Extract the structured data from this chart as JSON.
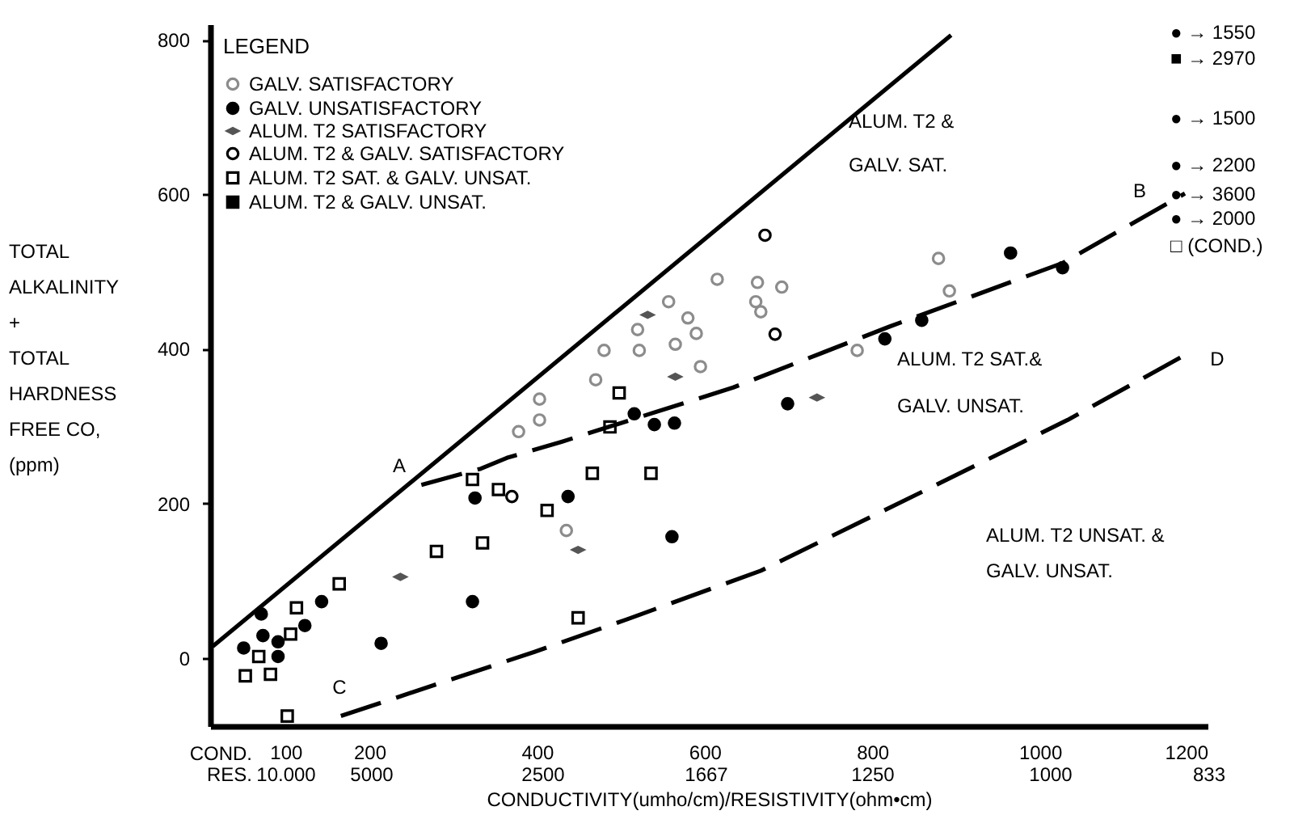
{
  "chart_data": {
    "type": "scatter",
    "xlabel": "CONDUCTIVITY(umho/cm)/RESISTIVITY(ohm•cm)",
    "ylabel": "TOTAL\nALKALINITY\n+\nTOTAL\nHARDNESS\n\nFREE CO,\n(ppm)",
    "legend_title": "LEGEND",
    "legend": "top left",
    "grid": false,
    "xlim": [
      10,
      1200
    ],
    "ylim": [
      -88,
      820
    ],
    "xticks": [
      100,
      200,
      400,
      600,
      800,
      1000,
      1200
    ],
    "yticks": [
      0,
      200,
      400,
      600,
      800
    ],
    "series": [
      {
        "name": "GALV. SATISFACTORY",
        "color": "#8c8c8c",
        "marker": "circle",
        "x": [
          879,
          892,
          615,
          663,
          692,
          661,
          667,
          580,
          565,
          595,
          522,
          782,
          403,
          378,
          435,
          403,
          480,
          557,
          520,
          470,
          590
        ],
        "values": [
          517,
          475,
          490,
          486,
          480,
          461,
          448,
          440,
          406,
          377,
          398,
          398,
          308,
          293,
          165,
          335,
          398,
          461,
          425,
          360,
          420
        ]
      },
      {
        "name": "GALV. UNSATISFACTORY",
        "color": "#000000",
        "marker": "circle",
        "x": [
          50,
          71,
          73,
          91,
          91,
          123,
          143,
          214,
          323,
          326,
          437,
          561,
          516,
          540,
          564,
          699,
          815,
          859,
          965,
          1027
        ],
        "values": [
          13,
          57,
          29,
          21,
          2,
          42,
          73,
          19,
          73,
          207,
          209,
          157,
          316,
          302,
          304,
          329,
          413,
          437,
          524,
          505
        ]
      },
      {
        "name": "ALUM. T2 SATISFACTORY",
        "color": "#555555",
        "x": [
          237,
          532,
          734,
          565,
          449
        ],
        "values": [
          105,
          444,
          337,
          364,
          140
        ]
      },
      {
        "name": "ALUM. T2 & GALV. SATISFACTORY",
        "color": "#000000",
        "marker": "circle",
        "x": [
          370,
          672,
          684
        ],
        "values": [
          209,
          547,
          419
        ]
      },
      {
        "name": "ALUM. T2 SAT. & GALV. UNSAT.",
        "color": "#000000",
        "marker": "square",
        "x": [
          52,
          68,
          82,
          102,
          106,
          113,
          164,
          280,
          323,
          335,
          354,
          412,
          449,
          466,
          536,
          487,
          498
        ],
        "values": [
          -23,
          2,
          -21,
          -75,
          31,
          65,
          96,
          138,
          231,
          149,
          218,
          191,
          52,
          239,
          239,
          299,
          343
        ]
      },
      {
        "name": "ALUM. T2 & GALV. UNSAT.",
        "color": "#000000",
        "marker": "square"
      },
      {
        "type": "line",
        "color": "#000000",
        "line_style": "solid",
        "x": [
          13,
          894
        ],
        "values": [
          15,
          806
        ]
      },
      {
        "type": "line",
        "color": "#000000",
        "line_style": "dashed",
        "x": [
          262,
          333,
          364,
          430,
          634,
          821,
          1027,
          1173
        ],
        "values": [
          224,
          245,
          259,
          280,
          350,
          429,
          511,
          601
        ]
      },
      {
        "type": "line",
        "color": "#000000",
        "line_style": "dashed",
        "x": [
          166,
          397,
          507,
          667,
          865,
          1033,
          1173
        ],
        "values": [
          -75,
          8,
          50,
          113,
          218,
          308,
          392
        ]
      }
    ],
    "annotations": [
      "COND.",
      "RES.",
      "10.000",
      "5000",
      "2500",
      "1667",
      "1250",
      "1000",
      "833",
      "A",
      "B",
      "C",
      "D",
      "ALUM. T2 &\nGALV. SAT.",
      "ALUM. T2 SAT.&\nGALV. UNSAT.",
      "ALUM. T2 UNSAT. &\nGALV. UNSAT.",
      "● → 1550",
      "■ → 2970",
      "● → 1500",
      "● → 2200",
      "● → 3600",
      "● → 2000",
      "□ (COND.)"
    ]
  }
}
